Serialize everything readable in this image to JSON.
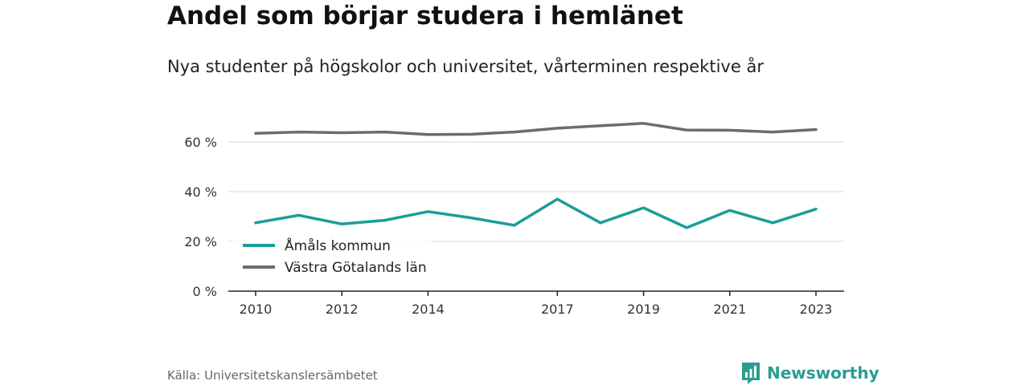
{
  "title": "Andel som börjar studera i hemlänet",
  "subtitle": "Nya studenter på högskolor och universitet, vårterminen respektive år",
  "source": "Källa: Universitetskanslersämbetet",
  "brand": "Newsworthy",
  "colors": {
    "amal": "#1a9e96",
    "vastra": "#6b6b73",
    "grid": "#d9d9d9",
    "axis": "#222222",
    "brand": "#2a9d8f"
  },
  "chart_data": {
    "type": "line",
    "x": [
      2010,
      2011,
      2012,
      2013,
      2014,
      2015,
      2016,
      2017,
      2018,
      2019,
      2020,
      2021,
      2022,
      2023
    ],
    "x_tick_labels": [
      "2010",
      "2012",
      "2014",
      "2017",
      "2019",
      "2021",
      "2023"
    ],
    "y_tick_labels": [
      "0 %",
      "20 %",
      "40 %",
      "60 %"
    ],
    "y_ticks": [
      0,
      20,
      40,
      60
    ],
    "ylim": [
      0,
      70
    ],
    "xlim": [
      2010,
      2023
    ],
    "grid": true,
    "legend_position": "bottom-left",
    "series": [
      {
        "name": "Åmåls kommun",
        "color": "#1a9e96",
        "values": [
          27.5,
          30.5,
          27,
          28.5,
          32,
          29.5,
          26.5,
          37,
          27.5,
          33.5,
          25.5,
          32.5,
          27.5,
          33
        ]
      },
      {
        "name": "Västra Götalands län",
        "color": "#6b6b73",
        "values": [
          63.5,
          64,
          63.7,
          64,
          63,
          63.1,
          64,
          65.5,
          66.5,
          67.5,
          64.8,
          64.7,
          64,
          65
        ]
      }
    ]
  }
}
